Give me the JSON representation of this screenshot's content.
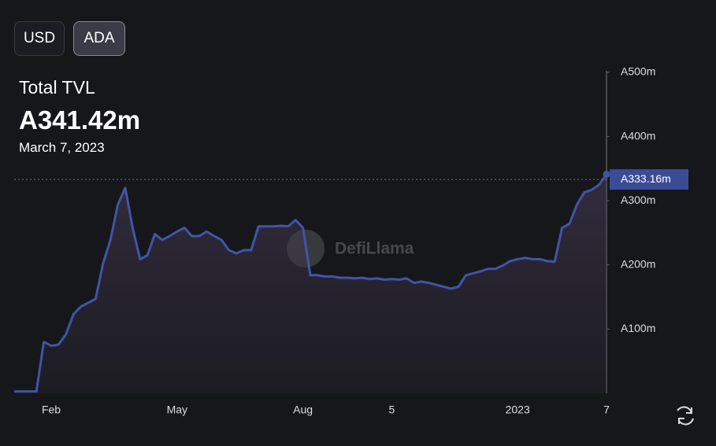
{
  "buttons": [
    "USD",
    "ADA"
  ],
  "header": {
    "title": "Total TVL",
    "value": "A341.42m",
    "date": "March 7, 2023"
  },
  "watermark": "DefiLlama",
  "chart_data": {
    "type": "area",
    "categories": [
      null,
      null,
      null,
      null,
      null,
      "Feb",
      null,
      null,
      null,
      null,
      null,
      null,
      null,
      null,
      null,
      null,
      null,
      null,
      null,
      null,
      null,
      null,
      "May",
      null,
      null,
      null,
      null,
      null,
      null,
      null,
      null,
      null,
      null,
      null,
      null,
      null,
      null,
      null,
      null,
      "Aug",
      null,
      null,
      null,
      null,
      null,
      null,
      null,
      null,
      null,
      null,
      null,
      "5",
      null,
      null,
      null,
      null,
      null,
      null,
      null,
      null,
      null,
      null,
      null,
      null,
      null,
      null,
      null,
      null,
      "2023",
      null,
      null,
      null,
      null,
      null,
      null,
      null,
      null,
      null,
      null,
      null,
      "7"
    ],
    "series": [
      {
        "color": "#4154a6",
        "values": [
          3,
          3,
          3,
          3,
          80,
          74,
          76,
          92,
          123,
          135,
          141,
          147,
          202,
          239,
          294,
          320,
          258,
          209,
          215,
          248,
          239,
          245,
          252,
          258,
          245,
          245,
          252,
          245,
          239,
          223,
          218,
          223,
          223,
          260,
          260,
          260,
          261,
          260,
          270,
          258,
          184,
          184,
          182,
          182,
          180,
          180,
          179,
          180,
          178,
          179,
          177,
          178,
          177,
          179,
          172,
          174,
          172,
          169,
          166,
          163,
          166,
          184,
          187,
          190,
          194,
          194,
          199,
          206,
          209,
          211,
          209,
          209,
          206,
          205,
          258,
          264,
          294,
          313,
          317,
          325,
          341.42
        ]
      }
    ],
    "ylim": [
      0,
      500
    ],
    "yticks": [
      {
        "value": 100,
        "label": "A100m"
      },
      {
        "value": 200,
        "label": "A200m"
      },
      {
        "value": 300,
        "label": "A300m"
      },
      {
        "value": 400,
        "label": "A400m"
      },
      {
        "value": 500,
        "label": "A500m"
      }
    ],
    "crosshair": {
      "value": 333.16,
      "label": "A333.16m"
    }
  }
}
